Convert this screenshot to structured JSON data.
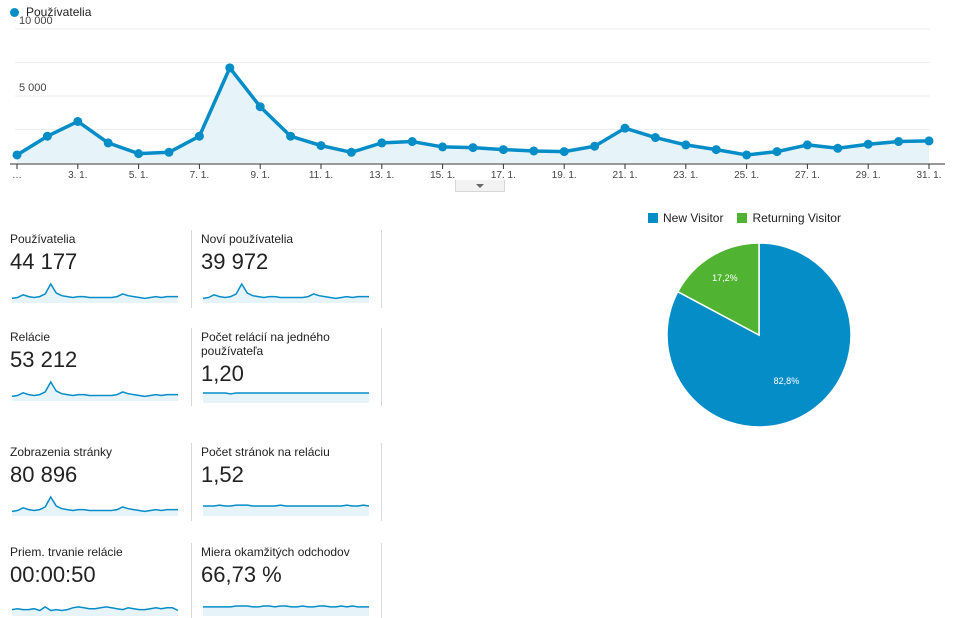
{
  "colors": {
    "primary": "#058dc7",
    "fill": "#e6f3f9",
    "green": "#50b432",
    "grid": "#eeeeee"
  },
  "chart_data": [
    {
      "type": "line",
      "series": [
        {
          "name": "Používatelia",
          "values": [
            600,
            2000,
            3100,
            1500,
            700,
            800,
            2000,
            7100,
            4200,
            2000,
            1300,
            800,
            1500,
            1600,
            1200,
            1150,
            1000,
            900,
            850,
            1250,
            2600,
            1900,
            1350,
            1000,
            600,
            850,
            1350,
            1100,
            1400,
            1600,
            1650
          ]
        }
      ],
      "x": [
        1,
        2,
        3,
        4,
        5,
        6,
        7,
        8,
        9,
        10,
        11,
        12,
        13,
        14,
        15,
        16,
        17,
        18,
        19,
        20,
        21,
        22,
        23,
        24,
        25,
        26,
        27,
        28,
        29,
        30,
        31
      ],
      "x_tick_labels": [
        "…",
        "3. 1.",
        "5. 1.",
        "7. 1.",
        "9. 1.",
        "11. 1.",
        "13. 1.",
        "15. 1.",
        "17. 1.",
        "19. 1.",
        "21. 1.",
        "23. 1.",
        "25. 1.",
        "27. 1.",
        "29. 1.",
        "31. 1."
      ],
      "y_tick_labels": [
        "10 000",
        "5 000"
      ],
      "ylim": [
        0,
        10000
      ]
    },
    {
      "type": "pie",
      "legend": [
        "New Visitor",
        "Returning Visitor"
      ],
      "values": [
        82.8,
        17.2
      ],
      "slice_labels": [
        "82,8%",
        "17,2%"
      ]
    }
  ],
  "metrics": [
    {
      "label": "Používatelia",
      "value": "44 177",
      "spark": [
        4,
        5,
        8,
        6,
        5,
        6,
        9,
        20,
        10,
        7,
        6,
        5,
        6,
        6,
        5,
        5,
        5,
        5,
        5,
        6,
        9,
        7,
        6,
        5,
        4,
        5,
        6,
        5,
        6,
        6,
        6
      ]
    },
    {
      "label": "Noví používatelia",
      "value": "39 972",
      "spark": [
        4,
        5,
        8,
        6,
        5,
        6,
        9,
        20,
        10,
        7,
        6,
        5,
        6,
        6,
        5,
        5,
        5,
        5,
        5,
        6,
        9,
        7,
        6,
        5,
        4,
        5,
        6,
        5,
        6,
        6,
        6
      ]
    },
    {
      "label": "Relácie",
      "value": "53 212",
      "spark": [
        4,
        5,
        8,
        6,
        5,
        6,
        9,
        20,
        10,
        7,
        6,
        5,
        6,
        6,
        5,
        5,
        5,
        5,
        5,
        6,
        9,
        7,
        6,
        5,
        4,
        5,
        6,
        5,
        6,
        6,
        6
      ]
    },
    {
      "label": "Počet relácií na jedného používateľa",
      "value": "1,20",
      "spark": [
        10,
        10,
        10,
        10,
        10,
        9,
        10,
        10,
        10,
        10,
        10,
        10,
        10,
        10,
        10,
        10,
        10,
        10,
        10,
        10,
        10,
        10,
        10,
        10,
        10,
        10,
        10,
        10,
        10,
        10,
        10
      ]
    },
    {
      "label": "Zobrazenia stránky",
      "value": "80 896",
      "spark": [
        4,
        5,
        8,
        6,
        5,
        6,
        9,
        20,
        10,
        7,
        6,
        5,
        6,
        6,
        5,
        5,
        5,
        5,
        5,
        6,
        9,
        7,
        6,
        5,
        4,
        5,
        6,
        5,
        6,
        6,
        6
      ]
    },
    {
      "label": "Počet stránok na reláciu",
      "value": "1,52",
      "spark": [
        10,
        10,
        10,
        11,
        10,
        10,
        11,
        11,
        11,
        10,
        10,
        10,
        10,
        10,
        11,
        10,
        10,
        10,
        10,
        10,
        10,
        10,
        10,
        10,
        10,
        10,
        11,
        10,
        10,
        11,
        10
      ]
    },
    {
      "label": "Priem. trvanie relácie",
      "value": "00:00:50",
      "spark": [
        6,
        7,
        6,
        6,
        7,
        5,
        9,
        5,
        6,
        5,
        6,
        8,
        9,
        8,
        7,
        7,
        8,
        9,
        8,
        7,
        6,
        8,
        7,
        6,
        6,
        7,
        8,
        7,
        8,
        8,
        5
      ]
    },
    {
      "label": "Miera okamžitých odchodov",
      "value": "66,73 %",
      "spark": [
        9,
        9,
        9,
        9,
        9,
        9,
        10,
        10,
        10,
        9,
        9,
        10,
        10,
        9,
        10,
        10,
        9,
        9,
        10,
        9,
        9,
        10,
        10,
        9,
        9,
        10,
        9,
        10,
        9,
        9,
        9
      ]
    }
  ]
}
